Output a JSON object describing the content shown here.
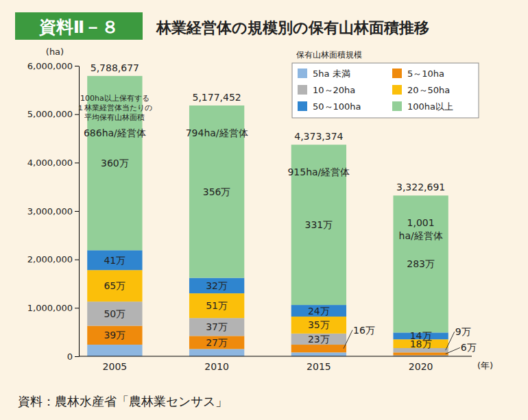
{
  "chart_data": {
    "type": "bar",
    "stacked": true,
    "data_labels": true,
    "grid": false,
    "legend": "upper right",
    "badge": "資料Ⅱ－８",
    "title": "林業経営体の規模別の保有山林面積推移",
    "ylabel": "(ha)",
    "xlabel": "(年)",
    "source": "資料：農林水産省「農林業センサス」",
    "legend_title": "保有山林面積規模",
    "categories": [
      "2005",
      "2010",
      "2015",
      "2020"
    ],
    "ylim": [
      0,
      6000000
    ],
    "yticks": [
      0,
      {
        "value": 1000000,
        "label": "1,000,000"
      },
      {
        "value": 2000000,
        "label": "2,000,000"
      },
      {
        "value": 3000000,
        "label": "3,000,000"
      },
      {
        "value": 4000000,
        "label": "4,000,000"
      },
      {
        "value": 5000000,
        "label": "5,000,000"
      },
      {
        "value": 6000000,
        "label": "6,000,000"
      }
    ],
    "series": [
      {
        "name": "5ha 未満",
        "color": "#8db6e0",
        "values": [
          240000,
          150000,
          80000,
          20000
        ],
        "value_labels": [
          null,
          null,
          null,
          null
        ]
      },
      {
        "name": "5～10ha",
        "color": "#ef8a0c",
        "values": [
          390000,
          270000,
          160000,
          60000
        ],
        "value_labels": [
          "39万",
          "27万",
          "16万",
          "6万"
        ]
      },
      {
        "name": "10～20ha",
        "color": "#b3b3b3",
        "values": [
          500000,
          370000,
          230000,
          90000
        ],
        "value_labels": [
          "50万",
          "37万",
          "23万",
          "9万"
        ]
      },
      {
        "name": "20～50ha",
        "color": "#fbbf0a",
        "values": [
          650000,
          510000,
          350000,
          180000
        ],
        "value_labels": [
          "65万",
          "51万",
          "35万",
          "18万"
        ]
      },
      {
        "name": "50～100ha",
        "color": "#2f85cf",
        "values": [
          410000,
          320000,
          240000,
          140000
        ],
        "value_labels": [
          "41万",
          "32万",
          "24万",
          "14万"
        ]
      },
      {
        "name": "100ha以上",
        "color": "#93cf98",
        "values": [
          3600000,
          3560000,
          3310000,
          2830000
        ],
        "value_labels": [
          "360万",
          "356万",
          "331万",
          "283万"
        ]
      }
    ],
    "totals": [
      5788677,
      5177452,
      4373374,
      3322691
    ],
    "total_labels": [
      "5,788,677",
      "5,177,452",
      "4,373,374",
      "3,322,691"
    ],
    "avg_note": [
      "100ha以上保有する",
      "１林業経営体当たりの",
      "平均保有山林面積"
    ],
    "avg_area": [
      686,
      794,
      915,
      1001
    ],
    "avg_area_labels": [
      [
        "686ha/経営体"
      ],
      [
        "794ha/経営体"
      ],
      [
        "915ha/経営体"
      ],
      [
        "1,001",
        "ha/経営体"
      ]
    ]
  }
}
